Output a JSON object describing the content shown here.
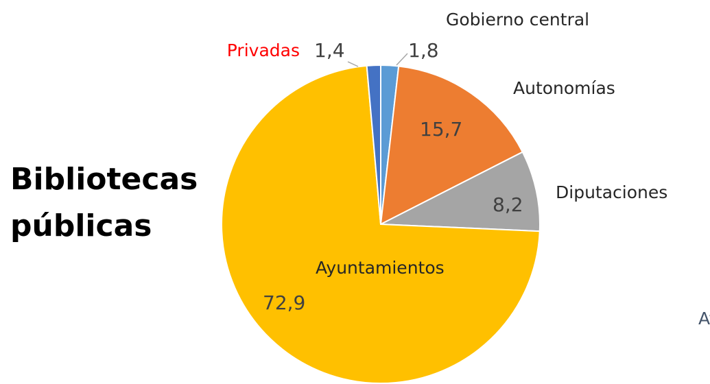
{
  "chart_data": {
    "type": "pie",
    "title": "Bibliotecas públicas",
    "categories": [
      "Gobierno central",
      "Autonomías",
      "Diputaciones",
      "Ayuntamientos",
      "Privadas"
    ],
    "values": [
      1.8,
      15.7,
      8.2,
      72.9,
      1.4
    ],
    "value_labels": [
      "1,8",
      "15,7",
      "8,2",
      "72,9",
      "1,4"
    ],
    "colors": [
      "#5b9bd5",
      "#ed7d31",
      "#a5a5a5",
      "#ffc000",
      "#4472c4"
    ],
    "label_colors": [
      "#262626",
      "#262626",
      "#262626",
      "#262626",
      "#ff0000"
    ],
    "annotation": "Ay"
  }
}
